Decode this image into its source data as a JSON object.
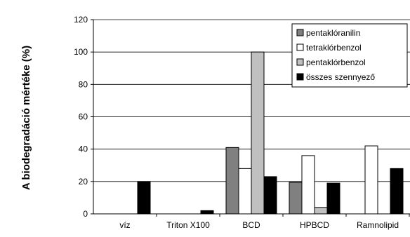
{
  "chart_data": {
    "type": "bar",
    "ylabel": "A biodegradáció mértéke (%)",
    "xlabel": "",
    "ylim": [
      0,
      120
    ],
    "yticks": [
      0,
      20,
      40,
      60,
      80,
      100,
      120
    ],
    "grid": true,
    "legend_position": "top-right",
    "categories": [
      "víz",
      "Triton X100",
      "BCD",
      "HPBCD",
      "Ramnolipid"
    ],
    "series": [
      {
        "name": "pentaklóranilin",
        "color": "#808080",
        "values": [
          0,
          0,
          41,
          19.5,
          0
        ]
      },
      {
        "name": "tetraklórbenzol",
        "color": "#ffffff",
        "values": [
          0,
          0,
          28,
          36,
          42
        ]
      },
      {
        "name": "pentaklórbenzol",
        "color": "#c0c0c0",
        "values": [
          0,
          0,
          100,
          4,
          0
        ]
      },
      {
        "name": "összes szennyező",
        "color": "#000000",
        "values": [
          20,
          2,
          23,
          19,
          28
        ]
      }
    ]
  }
}
